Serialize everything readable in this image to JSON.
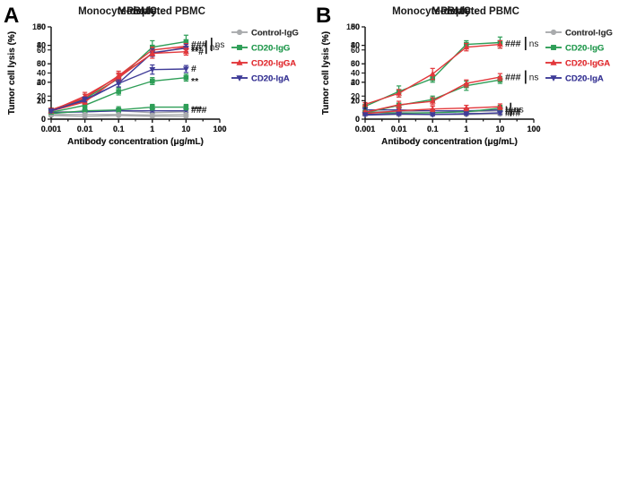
{
  "figure": {
    "panel_a_label": "A",
    "panel_b_label": "B"
  },
  "colors": {
    "axis": "#1a1a1a",
    "control_gray": "#a9abad",
    "igg_green": "#2e9e57",
    "igga_red": "#e2373b",
    "iga_navy": "#3f3c98",
    "annotation_black": "#1a1a1a"
  },
  "legend": {
    "items": [
      {
        "label": "Control-IgG",
        "color": "#a9abad",
        "text_color": "#3a3a3a",
        "marker": "circle"
      },
      {
        "label": "CD20-IgG",
        "color": "#2e9e57",
        "text_color": "#2e9e57",
        "marker": "square"
      },
      {
        "label": "CD20-IgGA",
        "color": "#e2373b",
        "text_color": "#e2373b",
        "marker": "triangle-up"
      },
      {
        "label": "CD20-IgA",
        "color": "#3f3c98",
        "text_color": "#3f3c98",
        "marker": "triangle-down"
      }
    ]
  },
  "chart_data": [
    {
      "id": "a1",
      "panel": "A",
      "type": "line",
      "title": "Monocyte-depleted PBMC",
      "xlabel": "Antibody concentration (μg/mL)",
      "ylabel": "Tumor cell lysis (%)",
      "x": [
        0.001,
        0.01,
        0.1,
        1,
        10
      ],
      "xticks": [
        "0.001",
        "0.01",
        "0.1",
        "1",
        "10",
        "100"
      ],
      "xlim": [
        0.001,
        100
      ],
      "ylim": [
        0,
        50
      ],
      "ytick_step": 10,
      "series": [
        {
          "name": "Control-IgG",
          "values": [
            4,
            4,
            4.5,
            3.5,
            4
          ],
          "errors": [
            1,
            1,
            1,
            1,
            3
          ]
        },
        {
          "name": "CD20-IgG",
          "values": [
            5,
            11,
            22,
            39,
            42
          ],
          "errors": [
            0.8,
            2.5,
            3,
            3.5,
            3.5
          ]
        },
        {
          "name": "CD20-IgGA",
          "values": [
            4.5,
            12.5,
            23,
            35.5,
            39
          ],
          "errors": [
            0.8,
            2,
            2,
            2.5,
            1.5
          ]
        },
        {
          "name": "CD20-IgA",
          "values": [
            3.5,
            4,
            4.5,
            4.5,
            4.5
          ],
          "errors": [
            0.5,
            0.7,
            0.8,
            1,
            1
          ]
        }
      ],
      "annotations": [
        {
          "text": "###",
          "y": 40.5,
          "bracket": true,
          "bracket_label": "ns"
        },
        {
          "text": "###",
          "y": 5
        }
      ]
    },
    {
      "id": "a2",
      "panel": "A",
      "type": "line",
      "title": "Monocyte",
      "xlabel": "Antibody concentration (μg/mL)",
      "ylabel": "Tumor cell lysis (%)",
      "x": [
        0.001,
        0.01,
        0.1,
        1,
        10
      ],
      "xticks": [
        "0.001",
        "0.01",
        "0.1",
        "1",
        "10",
        "100"
      ],
      "xlim": [
        0.001,
        100
      ],
      "ylim": [
        0,
        100
      ],
      "ytick_step": 20,
      "series": [
        {
          "name": "Control-IgG",
          "values": [
            4,
            3,
            4,
            3,
            3
          ],
          "errors": [
            1,
            1,
            1,
            1,
            1
          ]
        },
        {
          "name": "CD20-IgG",
          "values": [
            6,
            9,
            10,
            13,
            13
          ],
          "errors": [
            2,
            3,
            3.5,
            3,
            3
          ]
        },
        {
          "name": "CD20-IgGA",
          "values": [
            10,
            23,
            47,
            75,
            79
          ],
          "errors": [
            2,
            4,
            5,
            3,
            3
          ]
        },
        {
          "name": "CD20-IgA",
          "values": [
            9,
            20,
            39,
            72,
            77
          ],
          "errors": [
            2,
            4,
            5,
            4,
            4
          ]
        }
      ],
      "annotations": [
        {
          "text": "***",
          "y": 78,
          "bracket": true,
          "bracket_label": "ns"
        },
        {
          "text": "***",
          "y": 13
        }
      ]
    },
    {
      "id": "a3",
      "panel": "A",
      "type": "line",
      "title": "PBMC",
      "xlabel": "Antibody concentration (μg/mL)",
      "ylabel": "Tumor cell lysis (%)",
      "x": [
        0.001,
        0.01,
        0.1,
        1,
        10
      ],
      "xticks": [
        "0.001",
        "0.01",
        "0.1",
        "1",
        "10",
        "100"
      ],
      "xlim": [
        0.001,
        100
      ],
      "ylim": [
        0,
        80
      ],
      "ytick_step": 20,
      "series": [
        {
          "name": "Control-IgG",
          "values": [
            4,
            4,
            4,
            3.5,
            4
          ],
          "errors": [
            0.8,
            0.8,
            0.8,
            0.8,
            0.8
          ]
        },
        {
          "name": "CD20-IgG",
          "values": [
            6,
            12,
            24,
            33,
            36
          ],
          "errors": [
            1,
            2,
            3,
            3,
            3
          ]
        },
        {
          "name": "CD20-IgGA",
          "values": [
            7,
            15,
            36,
            57,
            58.5
          ],
          "errors": [
            1,
            2,
            3,
            2,
            3
          ]
        },
        {
          "name": "CD20-IgA",
          "values": [
            7,
            17,
            31,
            43,
            43.5
          ],
          "errors": [
            1,
            2,
            3,
            4,
            3
          ]
        }
      ],
      "annotations": [
        {
          "text": "**#",
          "y": 58.5
        },
        {
          "text": "#",
          "y": 44
        },
        {
          "text": "**",
          "y": 35
        }
      ]
    },
    {
      "id": "b1",
      "panel": "B",
      "type": "line",
      "title": "Monocyte-depleted PBMC",
      "xlabel": "Antibody concentration (μg/mL)",
      "ylabel": "Tumor cell lysis (%)",
      "x": [
        0.001,
        0.01,
        0.1,
        1,
        10
      ],
      "xticks": [
        "0.001",
        "0.01",
        "0.1",
        "1",
        "10",
        "100"
      ],
      "xlim": [
        0.001,
        100
      ],
      "ylim": [
        0,
        50
      ],
      "ytick_step": 10,
      "series": [
        {
          "name": "Control-IgG",
          "values": [
            4,
            4,
            4.5,
            4,
            4.5
          ],
          "errors": [
            1,
            1,
            1,
            1,
            1
          ]
        },
        {
          "name": "CD20-IgG",
          "values": [
            7,
            15,
            22,
            40.5,
            41.5
          ],
          "errors": [
            1,
            3,
            2,
            2,
            3
          ]
        },
        {
          "name": "CD20-IgGA",
          "values": [
            8,
            14,
            24.5,
            39,
            40.5
          ],
          "errors": [
            1,
            2,
            3,
            2,
            2
          ]
        },
        {
          "name": "CD20-IgA",
          "values": [
            5,
            5,
            4.5,
            4.5,
            5
          ],
          "errors": [
            1,
            1,
            1,
            1,
            1.5
          ]
        }
      ],
      "annotations": [
        {
          "text": "###",
          "y": 41,
          "bracket": true,
          "bracket_label": "ns"
        },
        {
          "text": "###",
          "y": 4.5
        }
      ]
    },
    {
      "id": "b2",
      "panel": "B",
      "type": "line",
      "title": "Monocyte",
      "xlabel": "Antibody concentration (μg/mL)",
      "ylabel": "Tumor cell lysis (%)",
      "x": [
        0.001,
        0.01,
        0.1,
        1,
        10
      ],
      "xticks": [
        "0.001",
        "0.01",
        "0.1",
        "1",
        "10",
        "100"
      ],
      "xlim": [
        0.001,
        100
      ],
      "ylim": [
        0,
        100
      ],
      "ytick_step": 20,
      "series": [
        {
          "name": "Control-IgG",
          "values": [
            5.5,
            5.5,
            5.5,
            5.5,
            6
          ],
          "errors": [
            1.5,
            1.5,
            1.5,
            1.5,
            2
          ]
        },
        {
          "name": "CD20-IgG",
          "values": [
            7.5,
            6.5,
            7,
            8,
            12
          ],
          "errors": [
            1.5,
            2,
            2.5,
            3,
            3
          ]
        },
        {
          "name": "CD20-IgGA",
          "values": [
            6,
            9,
            11,
            12,
            13.5
          ],
          "errors": [
            1.5,
            2.5,
            3,
            3,
            3
          ]
        },
        {
          "name": "CD20-IgA",
          "values": [
            4.5,
            5,
            5,
            6,
            6
          ],
          "errors": [
            1,
            1.5,
            1.5,
            1.5,
            1.5
          ]
        }
      ],
      "annotations": [
        {
          "text": "I",
          "y": 10.5,
          "bracket": true,
          "bracket_label": "ns"
        }
      ]
    },
    {
      "id": "b3",
      "panel": "B",
      "type": "line",
      "title": "PBMC",
      "xlabel": "Antibody concentration (μg/mL)",
      "ylabel": "Tumor cell lysis (%)",
      "x": [
        0.001,
        0.01,
        0.1,
        1,
        10
      ],
      "xticks": [
        "0.001",
        "0.01",
        "0.1",
        "1",
        "10",
        "100"
      ],
      "xlim": [
        0.001,
        100
      ],
      "ylim": [
        0,
        80
      ],
      "ytick_step": 20,
      "series": [
        {
          "name": "Control-IgG",
          "values": [
            4,
            4,
            4,
            4,
            4.5
          ],
          "errors": [
            0.8,
            0.8,
            0.8,
            0.8,
            1
          ]
        },
        {
          "name": "CD20-IgG",
          "values": [
            5.5,
            12,
            17,
            29,
            34
          ],
          "errors": [
            1,
            2,
            3,
            4,
            3
          ]
        },
        {
          "name": "CD20-IgGA",
          "values": [
            6,
            12.5,
            15.5,
            31,
            36.5
          ],
          "errors": [
            1,
            3,
            3,
            3,
            3
          ]
        },
        {
          "name": "CD20-IgA",
          "values": [
            4,
            4.5,
            4,
            4.5,
            5.5
          ],
          "errors": [
            0.8,
            1,
            1,
            1,
            1.5
          ]
        }
      ],
      "annotations": [
        {
          "text": "###",
          "y": 36.5,
          "bracket": true,
          "bracket_label": "ns"
        },
        {
          "text": "###",
          "y": 5.5
        }
      ]
    }
  ]
}
